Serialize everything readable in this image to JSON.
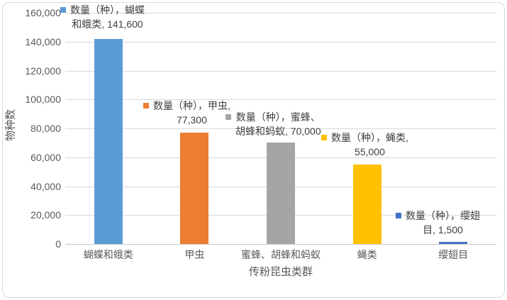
{
  "chart_data": {
    "type": "bar",
    "series_name": "数量（种）",
    "title": "",
    "xlabel": "传粉昆虫类群",
    "ylabel": "物种数",
    "categories": [
      "蝴蝶和蛾类",
      "甲虫",
      "蜜蜂、胡蜂和蚂蚁",
      "蝇类",
      "缨翅目"
    ],
    "values": [
      141600,
      77300,
      70000,
      55000,
      1500
    ],
    "bar_colors": [
      "#5B9BD5",
      "#ED7D31",
      "#A5A5A5",
      "#FFC000",
      "#4472C4"
    ],
    "ylim": [
      0,
      160000
    ],
    "ytick_step": 20000,
    "ytick_labels": [
      "0",
      "20,000",
      "40,000",
      "60,000",
      "80,000",
      "100,000",
      "120,000",
      "140,000",
      "160,000"
    ],
    "grid": "horizontal",
    "legend_position": "none",
    "data_labels": [
      {
        "lines": [
          "数量（种），蝴蝶",
          "和蛾类, 141,600"
        ]
      },
      {
        "lines": [
          "数量（种），甲虫,",
          "77,300"
        ]
      },
      {
        "lines": [
          "数量（种），蜜蜂、",
          "胡蜂和蚂蚁, 70,000"
        ]
      },
      {
        "lines": [
          "数量（种），蝇类,",
          "55,000"
        ]
      },
      {
        "lines": [
          "数量（种），缨翅",
          "目, 1,500"
        ]
      }
    ]
  },
  "colors": {
    "gridline": "#D9D9D9",
    "axis_line": "#C6C6C6",
    "tick_text": "#595959",
    "label_text": "#404040",
    "frame_border": "#D9D9D9",
    "background": "#FFFFFF"
  }
}
